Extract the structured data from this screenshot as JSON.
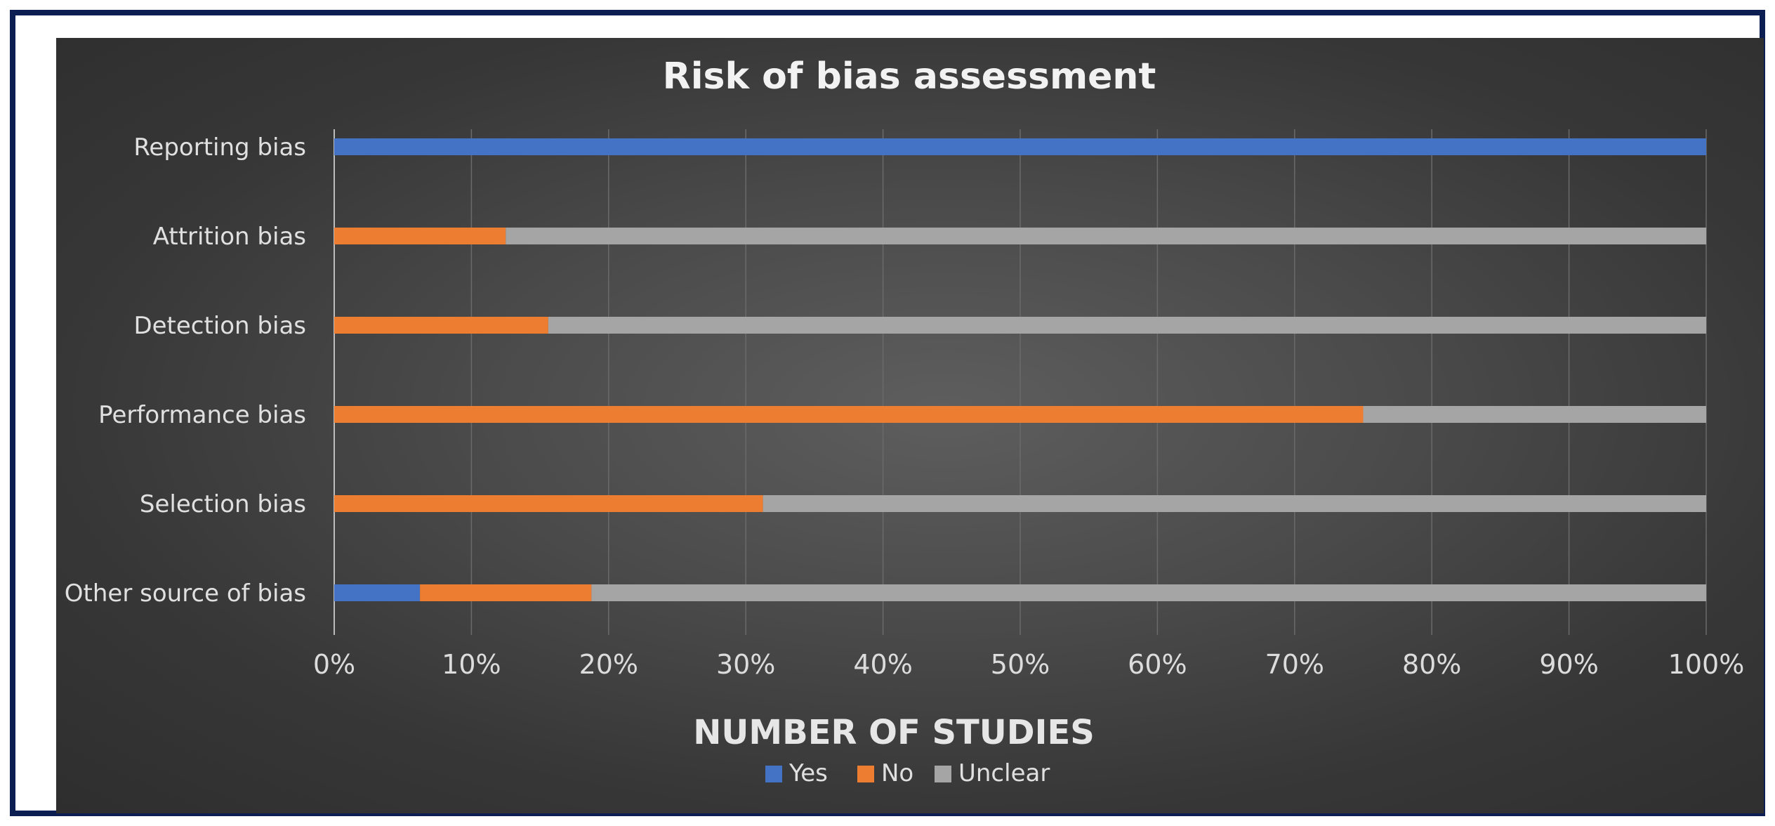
{
  "chart_data": {
    "type": "bar",
    "orientation": "horizontal",
    "stacked": "percent",
    "title": "Risk of bias assessment",
    "xlabel": "NUMBER OF STUDIES",
    "ylabel": "",
    "xlim": [
      0,
      100
    ],
    "x_ticks": [
      "0%",
      "10%",
      "20%",
      "30%",
      "40%",
      "50%",
      "60%",
      "70%",
      "80%",
      "90%",
      "100%"
    ],
    "categories": [
      "Reporting bias",
      "Attrition bias",
      "Detection bias",
      "Performance bias",
      "Selection bias",
      "Other source of bias"
    ],
    "series": [
      {
        "name": "Yes",
        "color": "#4472c4",
        "values": [
          100,
          0,
          0,
          0,
          0,
          6.25
        ]
      },
      {
        "name": "No",
        "color": "#ed7d31",
        "values": [
          0,
          12.5,
          15.6,
          75,
          31.25,
          12.5
        ]
      },
      {
        "name": "Unclear",
        "color": "#a5a5a5",
        "values": [
          0,
          87.5,
          84.4,
          25,
          68.75,
          81.25
        ]
      }
    ],
    "grid": true,
    "legend_position": "bottom"
  }
}
